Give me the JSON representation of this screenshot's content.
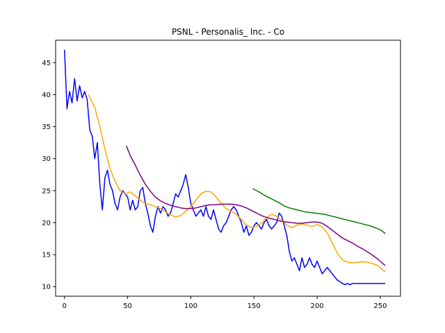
{
  "chart_data": {
    "type": "line",
    "title": "PSNL - Personalis_ Inc. - Co",
    "xlabel": "",
    "ylabel": "",
    "xlim": [
      -7,
      266
    ],
    "ylim": [
      8.5,
      48.5
    ],
    "xticks": [
      0,
      50,
      100,
      150,
      200,
      250
    ],
    "yticks": [
      10,
      15,
      20,
      25,
      30,
      35,
      40,
      45
    ],
    "grid": false,
    "legend": "none",
    "series": [
      {
        "color": "#0000ff",
        "x": [
          0,
          2,
          4,
          6,
          8,
          10,
          12,
          14,
          16,
          18,
          20,
          22,
          24,
          26,
          28,
          30,
          32,
          34,
          36,
          38,
          40,
          42,
          44,
          46,
          48,
          50,
          52,
          54,
          56,
          58,
          60,
          62,
          64,
          66,
          68,
          70,
          72,
          74,
          76,
          78,
          80,
          82,
          84,
          86,
          88,
          90,
          92,
          94,
          96,
          98,
          100,
          102,
          104,
          106,
          108,
          110,
          112,
          114,
          116,
          118,
          120,
          122,
          124,
          126,
          128,
          130,
          132,
          134,
          136,
          138,
          140,
          142,
          144,
          146,
          148,
          150,
          152,
          154,
          156,
          158,
          160,
          162,
          164,
          166,
          168,
          170,
          172,
          174,
          176,
          178,
          180,
          182,
          184,
          186,
          188,
          190,
          192,
          194,
          196,
          198,
          200,
          202,
          204,
          206,
          208,
          210,
          212,
          214,
          216,
          218,
          220,
          222,
          224,
          226,
          228,
          230,
          232,
          234,
          236,
          238,
          240,
          242,
          244,
          246,
          248,
          250,
          252,
          254
        ],
        "y": [
          47.0,
          37.8,
          40.5,
          38.7,
          42.5,
          39.0,
          41.4,
          39.5,
          40.5,
          39.2,
          34.5,
          33.5,
          30.0,
          32.5,
          26.0,
          22.0,
          27.0,
          28.2,
          26.0,
          25.0,
          23.0,
          22.0,
          24.0,
          25.0,
          24.5,
          24.0,
          22.0,
          23.5,
          22.0,
          22.5,
          25.0,
          25.5,
          23.0,
          21.5,
          19.5,
          18.5,
          21.0,
          22.5,
          21.5,
          22.5,
          22.0,
          21.0,
          21.5,
          23.0,
          24.5,
          24.0,
          25.0,
          26.0,
          27.5,
          25.5,
          23.0,
          22.0,
          21.0,
          21.5,
          22.0,
          21.0,
          22.5,
          21.0,
          20.5,
          22.0,
          20.5,
          19.0,
          18.5,
          19.5,
          20.0,
          21.0,
          22.0,
          22.5,
          22.0,
          21.0,
          20.0,
          18.5,
          19.5,
          18.0,
          18.5,
          19.5,
          20.0,
          19.5,
          19.0,
          20.0,
          20.5,
          19.5,
          19.0,
          19.5,
          20.0,
          21.5,
          21.0,
          19.5,
          18.0,
          15.5,
          14.0,
          14.5,
          13.5,
          12.5,
          14.5,
          13.0,
          13.5,
          14.5,
          13.5,
          13.0,
          14.0,
          13.0,
          12.0,
          12.5,
          13.0,
          12.5,
          12.0,
          11.5,
          11.0,
          10.8,
          10.5,
          10.3,
          10.5,
          10.3,
          10.5,
          10.5,
          10.5,
          10.5,
          10.5,
          10.5,
          10.5,
          10.5,
          10.5,
          10.5,
          10.5,
          10.5,
          10.5,
          10.5
        ]
      },
      {
        "color": "#ffa500",
        "x": [
          19,
          24,
          28,
          32,
          36,
          40,
          44,
          48,
          52,
          56,
          60,
          64,
          68,
          72,
          76,
          80,
          84,
          88,
          92,
          96,
          100,
          104,
          108,
          112,
          116,
          120,
          124,
          128,
          132,
          136,
          140,
          144,
          148,
          152,
          156,
          160,
          164,
          168,
          172,
          176,
          180,
          184,
          188,
          192,
          196,
          200,
          204,
          208,
          212,
          216,
          220,
          224,
          228,
          232,
          236,
          240,
          244,
          248,
          252,
          254
        ],
        "y": [
          40.0,
          38.0,
          35.0,
          31.5,
          28.5,
          26.5,
          25.0,
          24.5,
          24.8,
          24.2,
          23.5,
          23.0,
          22.8,
          22.5,
          22.2,
          21.7,
          21.2,
          20.9,
          21.1,
          21.8,
          22.5,
          23.5,
          24.5,
          24.9,
          24.8,
          24.0,
          23.0,
          22.2,
          21.8,
          21.3,
          20.5,
          19.6,
          19.2,
          19.4,
          19.9,
          20.8,
          21.3,
          21.0,
          20.4,
          19.6,
          19.2,
          19.6,
          19.8,
          19.6,
          19.4,
          19.7,
          19.3,
          18.4,
          16.8,
          15.2,
          14.2,
          13.8,
          13.7,
          13.8,
          13.9,
          13.8,
          13.6,
          13.3,
          12.6,
          12.3
        ]
      },
      {
        "color": "#800080",
        "x": [
          49,
          52,
          56,
          60,
          64,
          68,
          72,
          76,
          80,
          84,
          88,
          92,
          96,
          100,
          104,
          108,
          112,
          116,
          120,
          124,
          128,
          132,
          136,
          140,
          144,
          148,
          152,
          156,
          160,
          164,
          168,
          172,
          176,
          180,
          184,
          188,
          192,
          196,
          200,
          204,
          208,
          212,
          216,
          220,
          224,
          228,
          232,
          236,
          240,
          244,
          248,
          252,
          254
        ],
        "y": [
          32.0,
          30.5,
          29.0,
          27.4,
          26.0,
          24.9,
          24.0,
          23.4,
          23.0,
          22.7,
          22.5,
          22.3,
          22.2,
          22.2,
          22.3,
          22.5,
          22.7,
          22.8,
          22.8,
          22.9,
          22.9,
          22.9,
          22.8,
          22.6,
          22.3,
          21.9,
          21.5,
          21.1,
          20.8,
          20.6,
          20.4,
          20.2,
          20.1,
          20.0,
          19.9,
          19.9,
          20.0,
          20.1,
          20.1,
          19.9,
          19.4,
          18.8,
          18.2,
          17.6,
          17.2,
          16.8,
          16.3,
          15.9,
          15.4,
          14.9,
          14.3,
          13.6,
          13.3
        ]
      },
      {
        "color": "#008000",
        "x": [
          149,
          154,
          158,
          162,
          166,
          170,
          174,
          178,
          182,
          186,
          190,
          194,
          198,
          202,
          206,
          210,
          214,
          218,
          222,
          226,
          230,
          234,
          238,
          242,
          246,
          250,
          254
        ],
        "y": [
          25.3,
          24.8,
          24.3,
          23.9,
          23.5,
          23.1,
          22.6,
          22.3,
          22.1,
          21.9,
          21.7,
          21.6,
          21.5,
          21.4,
          21.3,
          21.1,
          20.9,
          20.7,
          20.5,
          20.3,
          20.1,
          19.9,
          19.7,
          19.5,
          19.2,
          18.9,
          18.3
        ]
      }
    ]
  }
}
